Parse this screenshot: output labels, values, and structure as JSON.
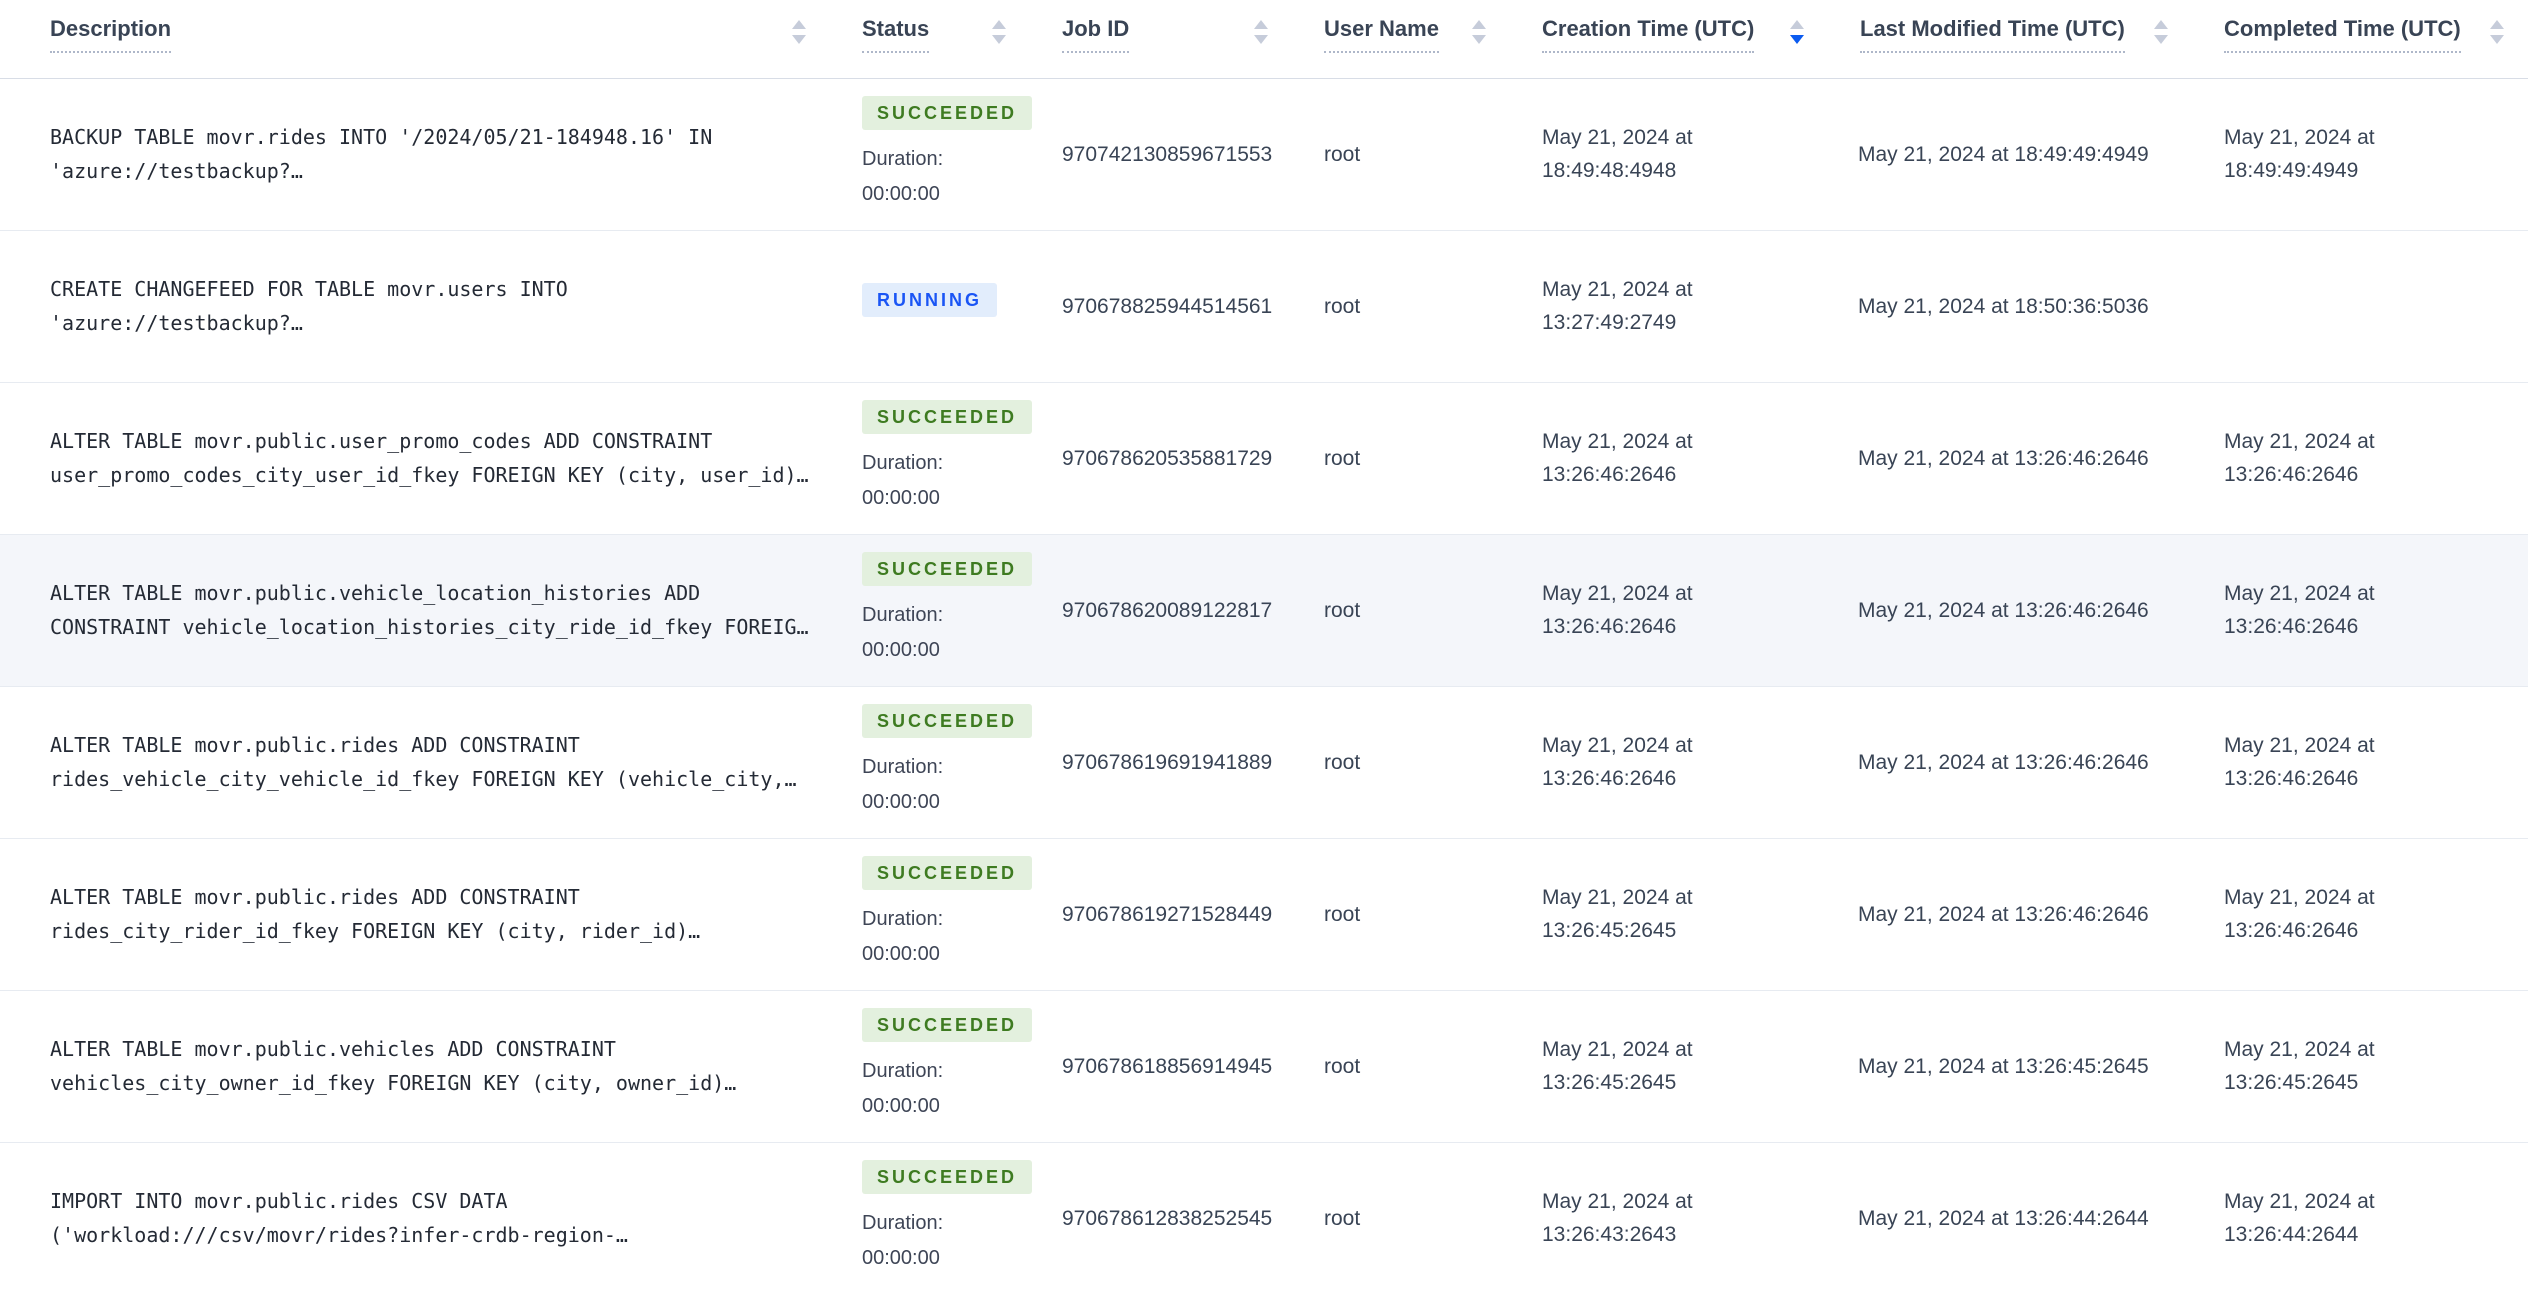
{
  "colors": {
    "header_text": "#394455",
    "body_text": "#394455",
    "description_text": "#242a35",
    "succeeded_badge_bg": "#e3f0de",
    "succeeded_badge_text": "#3e7b21",
    "running_badge_bg": "#e2edfc",
    "running_badge_text": "#1a55f5",
    "sort_icon_inactive": "#c6ccda",
    "sort_icon_active": "#0b5bf0",
    "row_divider": "#e7ebf1",
    "highlighted_row_bg": "#f4f6fa"
  },
  "table": {
    "sorted_column": "Creation Time (UTC)",
    "sort_direction": "desc",
    "columns": [
      {
        "label": "Description",
        "sortable": true
      },
      {
        "label": "Status",
        "sortable": true
      },
      {
        "label": "Job ID",
        "sortable": true
      },
      {
        "label": "User Name",
        "sortable": true
      },
      {
        "label": "Creation Time (UTC)",
        "sortable": true,
        "sorted": "desc"
      },
      {
        "label": "Last Modified Time (UTC)",
        "sortable": true
      },
      {
        "label": "Completed Time (UTC)",
        "sortable": true
      }
    ],
    "rows": [
      {
        "description": "BACKUP TABLE movr.rides INTO '/2024/05/21-184948.16' IN 'azure://testbackup?…",
        "status": "SUCCEEDED",
        "duration_label": "Duration:",
        "duration_value": "00:00:00",
        "job_id": "970742130859671553",
        "user_name": "root",
        "creation_time": "May 21, 2024 at 18:49:48:4948",
        "last_modified_time": "May 21, 2024 at 18:49:49:4949",
        "completed_time": "May 21, 2024 at 18:49:49:4949"
      },
      {
        "description": "CREATE CHANGEFEED FOR TABLE movr.users INTO 'azure://testbackup?…",
        "status": "RUNNING",
        "duration_label": "",
        "duration_value": "",
        "job_id": "970678825944514561",
        "user_name": "root",
        "creation_time": "May 21, 2024 at 13:27:49:2749",
        "last_modified_time": "May 21, 2024 at 18:50:36:5036",
        "completed_time": ""
      },
      {
        "description": "ALTER TABLE movr.public.user_promo_codes ADD CONSTRAINT user_promo_codes_city_user_id_fkey FOREIGN KEY (city, user_id)…",
        "status": "SUCCEEDED",
        "duration_label": "Duration:",
        "duration_value": "00:00:00",
        "job_id": "970678620535881729",
        "user_name": "root",
        "creation_time": "May 21, 2024 at 13:26:46:2646",
        "last_modified_time": "May 21, 2024 at 13:26:46:2646",
        "completed_time": "May 21, 2024 at 13:26:46:2646"
      },
      {
        "description": "ALTER TABLE movr.public.vehicle_location_histories ADD CONSTRAINT vehicle_location_histories_city_ride_id_fkey FOREIG…",
        "status": "SUCCEEDED",
        "duration_label": "Duration:",
        "duration_value": "00:00:00",
        "job_id": "970678620089122817",
        "user_name": "root",
        "creation_time": "May 21, 2024 at 13:26:46:2646",
        "last_modified_time": "May 21, 2024 at 13:26:46:2646",
        "completed_time": "May 21, 2024 at 13:26:46:2646",
        "highlighted": true
      },
      {
        "description": "ALTER TABLE movr.public.rides ADD CONSTRAINT rides_vehicle_city_vehicle_id_fkey FOREIGN KEY (vehicle_city,…",
        "status": "SUCCEEDED",
        "duration_label": "Duration:",
        "duration_value": "00:00:00",
        "job_id": "970678619691941889",
        "user_name": "root",
        "creation_time": "May 21, 2024 at 13:26:46:2646",
        "last_modified_time": "May 21, 2024 at 13:26:46:2646",
        "completed_time": "May 21, 2024 at 13:26:46:2646"
      },
      {
        "description": "ALTER TABLE movr.public.rides ADD CONSTRAINT rides_city_rider_id_fkey FOREIGN KEY (city, rider_id)…",
        "status": "SUCCEEDED",
        "duration_label": "Duration:",
        "duration_value": "00:00:00",
        "job_id": "970678619271528449",
        "user_name": "root",
        "creation_time": "May 21, 2024 at 13:26:45:2645",
        "last_modified_time": "May 21, 2024 at 13:26:46:2646",
        "completed_time": "May 21, 2024 at 13:26:46:2646"
      },
      {
        "description": "ALTER TABLE movr.public.vehicles ADD CONSTRAINT vehicles_city_owner_id_fkey FOREIGN KEY (city, owner_id)…",
        "status": "SUCCEEDED",
        "duration_label": "Duration:",
        "duration_value": "00:00:00",
        "job_id": "970678618856914945",
        "user_name": "root",
        "creation_time": "May 21, 2024 at 13:26:45:2645",
        "last_modified_time": "May 21, 2024 at 13:26:45:2645",
        "completed_time": "May 21, 2024 at 13:26:45:2645"
      },
      {
        "description": "IMPORT INTO movr.public.rides CSV DATA ('workload:///csv/movr/rides?infer-crdb-region-…",
        "status": "SUCCEEDED",
        "duration_label": "Duration:",
        "duration_value": "00:00:00",
        "job_id": "970678612838252545",
        "user_name": "root",
        "creation_time": "May 21, 2024 at 13:26:43:2643",
        "last_modified_time": "May 21, 2024 at 13:26:44:2644",
        "completed_time": "May 21, 2024 at 13:26:44:2644"
      }
    ]
  }
}
